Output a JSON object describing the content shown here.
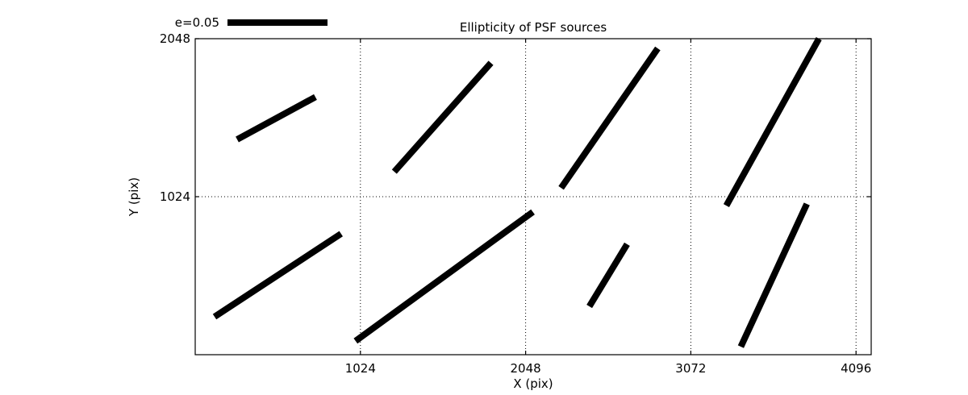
{
  "page": {
    "background": "#ffffff",
    "foreground": "#000000"
  },
  "chart_data": {
    "type": "scatter",
    "subtype": "ellipticity-whisker-quiver",
    "title": "Ellipticity of PSF sources",
    "xlabel": "X (pix)",
    "ylabel": "Y (pix)",
    "xlim": [
      0,
      4190
    ],
    "ylim": [
      0,
      2048
    ],
    "xticks": [
      1024,
      2048,
      3072,
      4096
    ],
    "yticks": [
      1024,
      2048
    ],
    "grid": "dotted",
    "grid_color": "#000000",
    "stroke_color": "#000000",
    "whisker_stroke_width_px": 8,
    "legend": {
      "label": "e=0.05",
      "value": 0.05,
      "position": "above-axes-top-left"
    },
    "series": [
      {
        "name": "psf-ellipticity-whiskers",
        "segments": [
          [
            260,
            1395,
            745,
            1670
          ],
          [
            1234,
            1186,
            1833,
            1891
          ],
          [
            2268,
            1081,
            2867,
            1985
          ],
          [
            3292,
            966,
            3866,
            2048
          ],
          [
            120,
            246,
            904,
            784
          ],
          [
            994,
            89,
            2093,
            925
          ],
          [
            2443,
            313,
            2677,
            716
          ],
          [
            3382,
            52,
            3791,
            977
          ]
        ]
      }
    ]
  }
}
